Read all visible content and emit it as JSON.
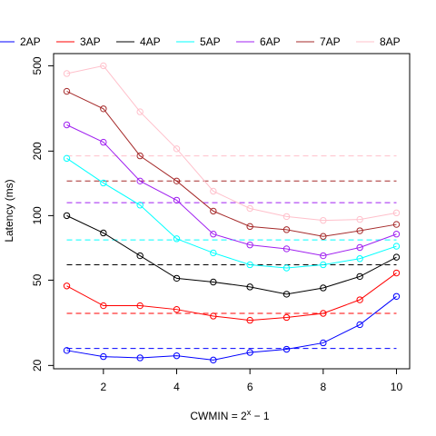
{
  "chart_data": {
    "type": "line",
    "xlabel_base": "CWMIN = 2",
    "xlabel_sup": "x",
    "xlabel_tail": " − 1",
    "ylabel": "Latency (ms)",
    "x": [
      1,
      2,
      3,
      4,
      5,
      6,
      7,
      8,
      9,
      10
    ],
    "xlim": [
      0.64,
      10.36
    ],
    "ylim": [
      19.3,
      570
    ],
    "y_scale": "log",
    "x_ticks": [
      2,
      4,
      6,
      8,
      10
    ],
    "y_ticks": [
      20,
      50,
      100,
      200,
      500
    ],
    "legend_position": "top",
    "series": [
      {
        "name": "2AP",
        "color": "#0000FF",
        "values": [
          23.5,
          22,
          21.7,
          22.2,
          21.2,
          23,
          23.8,
          25.5,
          31,
          42
        ],
        "reference": 24
      },
      {
        "name": "3AP",
        "color": "#FF0000",
        "values": [
          47,
          38,
          38,
          36.5,
          34,
          32.5,
          33.5,
          35,
          40.5,
          54
        ],
        "reference": 35
      },
      {
        "name": "4AP",
        "color": "#000000",
        "values": [
          100,
          83,
          65,
          51,
          49,
          46.5,
          43,
          46,
          52,
          64
        ],
        "reference": 59
      },
      {
        "name": "5AP",
        "color": "#00FFFF",
        "values": [
          185,
          142,
          112,
          78,
          67,
          59,
          57,
          59,
          63,
          72
        ],
        "reference": 77
      },
      {
        "name": "6AP",
        "color": "#A020F0",
        "values": [
          265,
          220,
          145,
          118,
          82,
          73,
          70,
          65,
          71,
          82
        ],
        "reference": 115
      },
      {
        "name": "7AP",
        "color": "#A52A2A",
        "values": [
          380,
          315,
          190,
          145,
          105,
          89,
          86,
          80,
          85,
          91
        ],
        "reference": 145
      },
      {
        "name": "8AP",
        "color": "#FFC0CB",
        "values": [
          460,
          500,
          305,
          205,
          130,
          108,
          99,
          95,
          96,
          103
        ],
        "reference": 190
      }
    ]
  }
}
